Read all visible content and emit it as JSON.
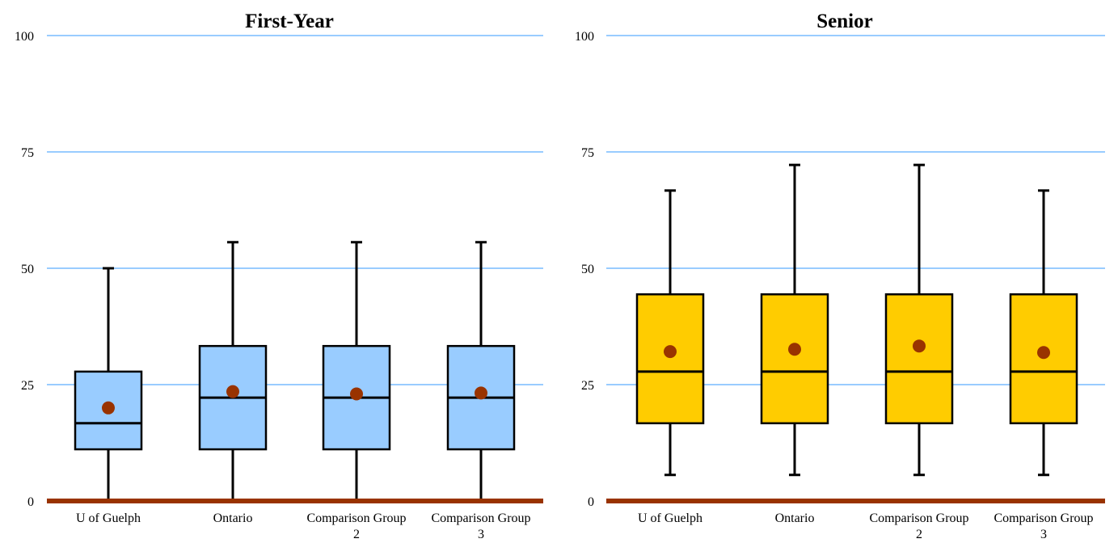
{
  "chart_data": [
    {
      "type": "box",
      "title": "First-Year",
      "ylim": [
        0,
        100
      ],
      "yticks": [
        0,
        25,
        50,
        75,
        100
      ],
      "grid": true,
      "colors": {
        "box": "#99ccff",
        "mean": "#993300",
        "grid": "#99ccff",
        "baseline": "#993300",
        "line": "#000000"
      },
      "categories": [
        [
          "U of Guelph"
        ],
        [
          "Ontario"
        ],
        [
          "Comparison Group",
          "2"
        ],
        [
          "Comparison Group",
          "3"
        ]
      ],
      "boxes": [
        {
          "min": 0,
          "q1": 11.1,
          "median": 16.7,
          "q3": 27.8,
          "max": 50.0,
          "mean": 20.0
        },
        {
          "min": 0,
          "q1": 11.1,
          "median": 22.2,
          "q3": 33.3,
          "max": 55.6,
          "mean": 23.5
        },
        {
          "min": 0,
          "q1": 11.1,
          "median": 22.2,
          "q3": 33.3,
          "max": 55.6,
          "mean": 23.0
        },
        {
          "min": 0,
          "q1": 11.1,
          "median": 22.2,
          "q3": 33.3,
          "max": 55.6,
          "mean": 23.2
        }
      ]
    },
    {
      "type": "box",
      "title": "Senior",
      "ylim": [
        0,
        100
      ],
      "yticks": [
        0,
        25,
        50,
        75,
        100
      ],
      "grid": true,
      "colors": {
        "box": "#ffcc00",
        "mean": "#993300",
        "grid": "#99ccff",
        "baseline": "#993300",
        "line": "#000000"
      },
      "categories": [
        [
          "U of Guelph"
        ],
        [
          "Ontario"
        ],
        [
          "Comparison Group",
          "2"
        ],
        [
          "Comparison Group",
          "3"
        ]
      ],
      "boxes": [
        {
          "min": 5.6,
          "q1": 16.7,
          "median": 27.8,
          "q3": 44.4,
          "max": 66.7,
          "mean": 32.1
        },
        {
          "min": 5.6,
          "q1": 16.7,
          "median": 27.8,
          "q3": 44.4,
          "max": 72.2,
          "mean": 32.6
        },
        {
          "min": 5.6,
          "q1": 16.7,
          "median": 27.8,
          "q3": 44.4,
          "max": 72.2,
          "mean": 33.3
        },
        {
          "min": 5.6,
          "q1": 16.7,
          "median": 27.8,
          "q3": 44.4,
          "max": 66.7,
          "mean": 31.9
        }
      ]
    }
  ]
}
